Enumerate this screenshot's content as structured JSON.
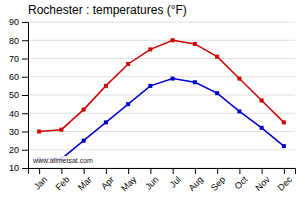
{
  "chart_data": {
    "type": "line",
    "title": "Rochester : temperatures (°F)",
    "categories": [
      "Jan",
      "Feb",
      "Mar",
      "Apr",
      "May",
      "Jun",
      "Jul",
      "Aug",
      "Sep",
      "Oct",
      "Nov",
      "Dec"
    ],
    "series": [
      {
        "color": "#cc0000",
        "marker": "square",
        "values": [
          30,
          31,
          42,
          55,
          67,
          75,
          80,
          78,
          71,
          59,
          47,
          35
        ]
      },
      {
        "color": "#0000cc",
        "marker": "square",
        "values": [
          15,
          15,
          25,
          35,
          45,
          55,
          59,
          57,
          51,
          41,
          32,
          22
        ]
      }
    ],
    "ylim": [
      10,
      90
    ],
    "yticks": [
      10,
      20,
      30,
      40,
      50,
      60,
      70,
      80,
      90
    ],
    "grid": true,
    "annotation": "www.allmetsat.com"
  }
}
